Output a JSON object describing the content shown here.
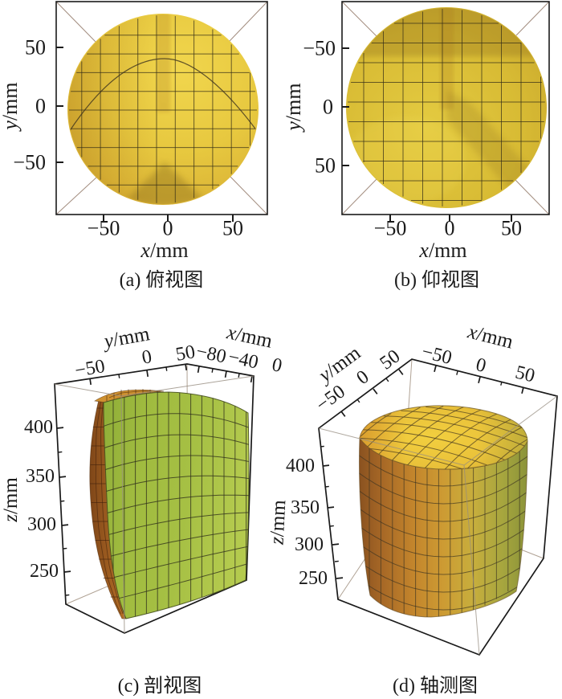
{
  "figure": {
    "description": "圆柱面三维重建结果的四个视图 (three-dimensional reconstructed cylindrical surface, four views)"
  },
  "labels": {
    "x_var": "x",
    "y_var": "y",
    "z_var": "z",
    "unit": "/mm"
  },
  "colors": {
    "frame": "#1a1a1a",
    "hidden_edge": "#b0a294",
    "diagonal": "#a28c7e",
    "circle_top_view": "#e7c83f",
    "circle_bottom_view": "#d8bb34",
    "section_green": "#a6c044",
    "section_orange": "#9c5c20",
    "cap_orange": "#cf9130",
    "cylinder_side_mid": "#cd9b33",
    "cylinder_dome": "#f2cf3f"
  },
  "panels": {
    "a": {
      "caption": "(a) 俯视图",
      "yticks": [
        "50",
        "0",
        "−50"
      ],
      "xticks": [
        "−50",
        "0",
        "50"
      ]
    },
    "b": {
      "caption": "(b) 仰视图",
      "yticks": [
        "−50",
        "0",
        "50"
      ],
      "xticks": [
        "−50",
        "0",
        "50"
      ]
    },
    "c": {
      "caption": "(c) 剖视图",
      "yticks": [
        "−50",
        "0",
        "50"
      ],
      "xticks": [
        "−80",
        "−40",
        "0"
      ],
      "zticks": [
        "400",
        "350",
        "300",
        "250"
      ]
    },
    "d": {
      "caption": "(d) 轴测图",
      "yticks": [
        "−50",
        "0",
        "50"
      ],
      "xticks": [
        "−50",
        "0",
        "50"
      ],
      "zticks": [
        "400",
        "350",
        "300",
        "250"
      ]
    }
  },
  "chart_data": [
    {
      "panel": "a",
      "type": "3d-surface-view",
      "view": "top",
      "title": "(a) 俯视图",
      "xlabel": "x/mm",
      "ylabel": "y/mm",
      "xticks": [
        -50,
        0,
        50
      ],
      "yticks": [
        -50,
        0,
        50
      ],
      "xlim": [
        -85,
        85
      ],
      "ylim": [
        -85,
        85
      ],
      "content": "yellow gridded cylindrical surface seen from above; circular outline radius ≈ 78 mm centered at origin; dome seam arc peaking near y ≈ 42 mm"
    },
    {
      "panel": "b",
      "type": "3d-surface-view",
      "view": "bottom",
      "title": "(b) 仰视图",
      "xlabel": "x/mm",
      "ylabel": "y/mm",
      "xticks": [
        -50,
        0,
        50
      ],
      "yticks": [
        -50,
        0,
        50
      ],
      "xlim": [
        -85,
        85
      ],
      "ylim": [
        -85,
        85
      ],
      "yaxis_direction": "reversed",
      "content": "same circular surface seen from below, radius ≈ 80 mm; darker band near y ≈ −50 mm and diagonal shading toward +x,+y"
    },
    {
      "panel": "c",
      "type": "3d-surface-view",
      "view": "cutaway",
      "title": "(c) 剖视图",
      "xlabel": "x/mm",
      "ylabel": "y/mm",
      "zlabel": "z/mm",
      "xticks": [
        -80,
        -40,
        0
      ],
      "yticks": [
        -50,
        0,
        50
      ],
      "zticks": [
        400,
        350,
        300,
        250
      ],
      "xlim": [
        -85,
        5
      ],
      "ylim": [
        -75,
        55
      ],
      "zlim": [
        215,
        435
      ],
      "content": "half of the cylinder: green planar section face with rectangular mesh, orange curved outer wall on the left, orange top cap strip"
    },
    {
      "panel": "d",
      "type": "3d-surface-view",
      "view": "axonometric",
      "title": "(d) 轴测图",
      "xlabel": "x/mm",
      "ylabel": "y/mm",
      "zlabel": "z/mm",
      "xticks": [
        -50,
        0,
        50
      ],
      "yticks": [
        -50,
        0,
        50
      ],
      "zticks": [
        400,
        350,
        300,
        250
      ],
      "xlim": [
        -85,
        85
      ],
      "ylim": [
        -85,
        85
      ],
      "zlim": [
        215,
        435
      ],
      "content": "full cylinder, radius ≈ 80 mm, z ≈ 220–430 mm, meshed orange-to-olive side wall and bright yellow domed top"
    }
  ]
}
